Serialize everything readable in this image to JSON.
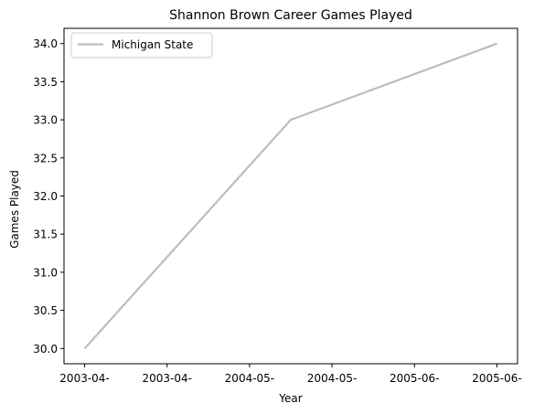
{
  "chart_data": {
    "type": "line",
    "title": "Shannon Brown Career Games Played",
    "xlabel": "Year",
    "ylabel": "Games Played",
    "x_tick_labels": [
      "2003-04-",
      "2003-04-",
      "2004-05-",
      "2004-05-",
      "2005-06-",
      "2005-06-"
    ],
    "x": [
      0,
      2.5,
      5
    ],
    "xlim": [
      -0.25,
      5.25
    ],
    "ylim": [
      29.8,
      34.2
    ],
    "y_ticks": [
      30.0,
      30.5,
      31.0,
      31.5,
      32.0,
      32.5,
      33.0,
      33.5,
      34.0
    ],
    "series": [
      {
        "name": "Michigan State",
        "values": [
          30,
          33,
          34
        ],
        "color": "#bdbdbd"
      }
    ],
    "legend": "upper-left",
    "grid": false
  }
}
